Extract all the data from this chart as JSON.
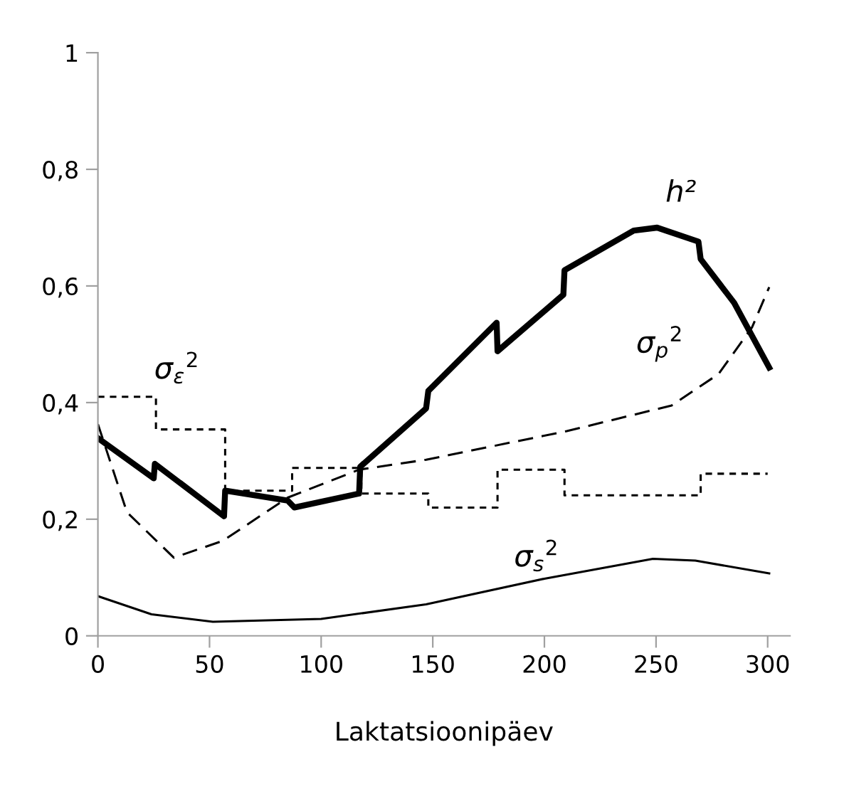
{
  "chart_data": {
    "type": "line",
    "xlabel": "Laktatsioonipäev",
    "xlim": [
      0,
      310
    ],
    "xticks": [
      0,
      50,
      100,
      150,
      200,
      250,
      300
    ],
    "ylim": [
      0,
      1
    ],
    "yticks": [
      {
        "value": 0,
        "label": "0"
      },
      {
        "value": 0.2,
        "label": "0,2"
      },
      {
        "value": 0.4,
        "label": "0,4"
      },
      {
        "value": 0.6,
        "label": "0,6"
      },
      {
        "value": 0.8,
        "label": "0,8"
      },
      {
        "value": 1,
        "label": "1"
      }
    ],
    "grid": false,
    "legend": false,
    "marker": "none",
    "series": [
      {
        "name": "h²",
        "color": "#000000",
        "line_style": "solid",
        "x": [
          0,
          25,
          25.5,
          56.5,
          57,
          85,
          88,
          117,
          117.5,
          147,
          148,
          178.6,
          179,
          208.5,
          209,
          240,
          250.5,
          269,
          270,
          285,
          300.7
        ],
        "values": [
          0.339,
          0.27,
          0.295,
          0.205,
          0.249,
          0.232,
          0.22,
          0.244,
          0.29,
          0.39,
          0.42,
          0.537,
          0.488,
          0.585,
          0.627,
          0.695,
          0.7,
          0.676,
          0.646,
          0.571,
          0.46
        ]
      },
      {
        "name": "σ$_{p}$$^{2}$",
        "color": "#000000",
        "line_style": "dashed",
        "x": [
          0,
          13,
          34,
          56,
          85,
          117,
          147,
          210,
          257,
          278,
          293,
          300.7
        ],
        "values": [
          0.363,
          0.212,
          0.134,
          0.163,
          0.237,
          0.285,
          0.302,
          0.351,
          0.395,
          0.449,
          0.529,
          0.598
        ]
      },
      {
        "name": "σ$_{ε}$$^{2}$",
        "type": "step",
        "color": "#000000",
        "line_style": "dotted",
        "x": [
          0,
          26,
          57,
          87,
          118,
          148,
          179,
          209,
          270,
          300
        ],
        "values": [
          0.41,
          0.354,
          0.249,
          0.288,
          0.244,
          0.22,
          0.285,
          0.241,
          0.278,
          0.278
        ]
      },
      {
        "name": "σ$_{s}$$^{2}$",
        "color": "#000000",
        "line_style": "solid",
        "x": [
          0,
          24,
          51.5,
          100,
          147,
          200,
          248.6,
          267.6,
          300.7
        ],
        "values": [
          0.068,
          0.037,
          0.024,
          0.029,
          0.054,
          0.098,
          0.132,
          0.129,
          0.107
        ]
      }
    ]
  }
}
